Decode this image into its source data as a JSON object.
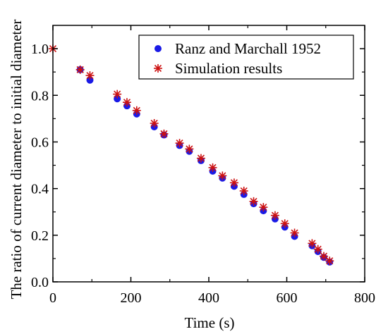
{
  "chart_data": {
    "type": "scatter",
    "xlabel": "Time (s)",
    "ylabel": "The ratio of current diameter to initial diameter",
    "xlim": [
      0,
      800
    ],
    "ylim": [
      0,
      1.1
    ],
    "xticks": [
      0,
      200,
      400,
      600,
      800
    ],
    "yticks": [
      0.0,
      0.2,
      0.4,
      0.6,
      0.8,
      1.0
    ],
    "xtick_labels": [
      "0",
      "200",
      "400",
      "600",
      "800"
    ],
    "ytick_labels": [
      "0.0",
      "0.2",
      "0.4",
      "0.6",
      "0.8",
      "1.0"
    ],
    "legend_position": "top-right",
    "grid": false,
    "series": [
      {
        "name": "Ranz and Marchall 1952",
        "marker": "circle",
        "color": "#1a1ae6",
        "points": [
          [
            70,
            0.91
          ],
          [
            95,
            0.865
          ],
          [
            165,
            0.785
          ],
          [
            190,
            0.755
          ],
          [
            215,
            0.72
          ],
          [
            260,
            0.665
          ],
          [
            285,
            0.63
          ],
          [
            325,
            0.585
          ],
          [
            350,
            0.56
          ],
          [
            380,
            0.52
          ],
          [
            410,
            0.475
          ],
          [
            435,
            0.445
          ],
          [
            465,
            0.41
          ],
          [
            490,
            0.375
          ],
          [
            515,
            0.335
          ],
          [
            540,
            0.305
          ],
          [
            570,
            0.27
          ],
          [
            595,
            0.235
          ],
          [
            620,
            0.195
          ],
          [
            665,
            0.155
          ],
          [
            680,
            0.13
          ],
          [
            695,
            0.105
          ],
          [
            710,
            0.085
          ]
        ]
      },
      {
        "name": "Simulation results",
        "marker": "star",
        "color": "#cc1111",
        "points": [
          [
            0,
            1.0
          ],
          [
            70,
            0.91
          ],
          [
            95,
            0.885
          ],
          [
            165,
            0.805
          ],
          [
            190,
            0.77
          ],
          [
            215,
            0.735
          ],
          [
            260,
            0.68
          ],
          [
            285,
            0.635
          ],
          [
            325,
            0.595
          ],
          [
            350,
            0.57
          ],
          [
            380,
            0.53
          ],
          [
            410,
            0.49
          ],
          [
            435,
            0.455
          ],
          [
            465,
            0.425
          ],
          [
            490,
            0.39
          ],
          [
            515,
            0.345
          ],
          [
            540,
            0.32
          ],
          [
            570,
            0.285
          ],
          [
            595,
            0.25
          ],
          [
            620,
            0.21
          ],
          [
            665,
            0.165
          ],
          [
            680,
            0.14
          ],
          [
            695,
            0.11
          ],
          [
            710,
            0.09
          ]
        ]
      }
    ]
  }
}
